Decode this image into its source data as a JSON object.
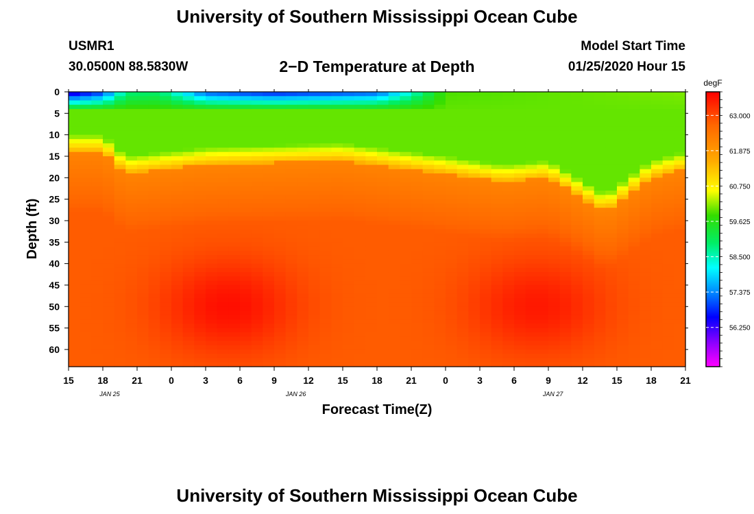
{
  "page": {
    "title": "University of Southern Mississippi Ocean Cube",
    "footer_title": "University of Southern Mississippi Ocean Cube",
    "station_id": "USMR1",
    "coordinates": "30.0500N 88.5830W",
    "subtitle": "2−D Temperature at Depth",
    "model_start_label": "Model Start Time",
    "model_start_value": "01/25/2020 Hour 15"
  },
  "chart_data": {
    "type": "heatmap",
    "title": "2−D Temperature at Depth",
    "xlabel": "Forecast Time(Z)",
    "ylabel": "Depth (ft)",
    "x_hours": [
      0,
      3,
      6,
      9,
      12,
      15,
      18,
      21,
      24,
      27,
      30,
      33,
      36,
      39,
      42,
      45,
      48,
      51,
      54
    ],
    "x_tick_labels": [
      "15",
      "18",
      "21",
      "0",
      "3",
      "6",
      "9",
      "12",
      "15",
      "18",
      "21",
      "0",
      "3",
      "6",
      "9",
      "12",
      "15",
      "18",
      "21"
    ],
    "date_labels": [
      {
        "hour": 3.6,
        "label": "JAN 25"
      },
      {
        "hour": 19.9,
        "label": "JAN 26"
      },
      {
        "hour": 42.4,
        "label": "JAN 27"
      }
    ],
    "y_ticks": [
      0,
      5,
      10,
      15,
      20,
      25,
      30,
      35,
      40,
      45,
      50,
      55,
      60
    ],
    "ylim": [
      0,
      64
    ],
    "xlim": [
      0,
      54
    ],
    "colorbar": {
      "unit": "degF",
      "range": [
        55.0,
        63.75
      ],
      "tick_values": [
        63.0,
        61.875,
        60.75,
        59.625,
        58.5,
        57.375,
        56.25
      ],
      "tick_labels": [
        "63.000",
        "61.875",
        "60.750",
        "59.625",
        "58.500",
        "57.375",
        "56.250"
      ]
    },
    "surface_temp_profile": [
      {
        "hour": 0,
        "t": 56.0
      },
      {
        "hour": 3,
        "t": 56.8
      },
      {
        "hour": 5,
        "t": 58.8
      },
      {
        "hour": 8,
        "t": 58.9
      },
      {
        "hour": 12,
        "t": 57.0
      },
      {
        "hour": 18,
        "t": 56.6
      },
      {
        "hour": 27,
        "t": 57.0
      },
      {
        "hour": 30,
        "t": 58.3
      },
      {
        "hour": 33,
        "t": 59.9
      },
      {
        "hour": 54,
        "t": 60.1
      }
    ],
    "thermocline_depth_ft": [
      {
        "hour": 0,
        "d": 14
      },
      {
        "hour": 3,
        "d": 14
      },
      {
        "hour": 5,
        "d": 19
      },
      {
        "hour": 12,
        "d": 17
      },
      {
        "hour": 24,
        "d": 16
      },
      {
        "hour": 33,
        "d": 19
      },
      {
        "hour": 38,
        "d": 21
      },
      {
        "hour": 42,
        "d": 20
      },
      {
        "hour": 47,
        "d": 28
      },
      {
        "hour": 51,
        "d": 20
      },
      {
        "hour": 54,
        "d": 18
      }
    ],
    "warm_cores": [
      {
        "hour": 14,
        "depth_ft": 50,
        "t": 63.6
      },
      {
        "hour": 41,
        "depth_ft": 50,
        "t": 63.5
      }
    ]
  }
}
